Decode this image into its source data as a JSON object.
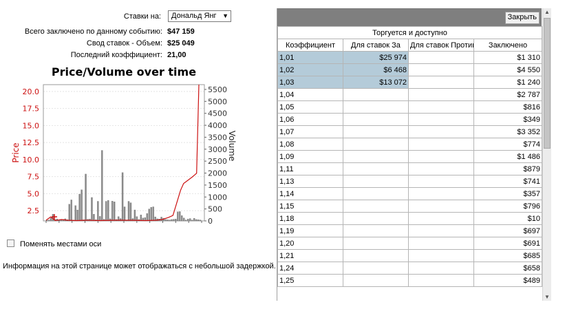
{
  "info": {
    "bet_on_label": "Ставки на:",
    "bet_on_value": "Дональд Янг",
    "total_label": "Всего заключено по данному событию:",
    "total_value": "$47 159",
    "summary_label": "Свод ставок - Объем:",
    "summary_value": "$25 049",
    "last_odds_label": "Последний коэффициент:",
    "last_odds_value": "21,00"
  },
  "checkbox_label": "Поменять местами оси",
  "delay_note": "Информация на этой странице может отображаться с небольшой задержкой.",
  "chart_data": {
    "type": "bar+line",
    "title": "Price/Volume over time",
    "ylabel_left": "Price",
    "ylabel_right": "Volume",
    "left_ticks": [
      "2.5",
      "5.0",
      "7.5",
      "10.0",
      "12.5",
      "15.0",
      "17.5",
      "20.0"
    ],
    "left_ylim": [
      1,
      21
    ],
    "right_ticks": [
      "0",
      "500",
      "1000",
      "1500",
      "2000",
      "2500",
      "3000",
      "3500",
      "4000",
      "4500",
      "5000",
      "5500"
    ],
    "right_ylim": [
      0,
      5700
    ],
    "volume_bars": [
      30,
      40,
      120,
      280,
      60,
      80,
      30,
      40,
      60,
      90,
      50,
      700,
      880,
      40,
      640,
      460,
      1120,
      1300,
      50,
      1960,
      70,
      80,
      980,
      280,
      50,
      820,
      190,
      2950,
      70,
      820,
      860,
      90,
      830,
      800,
      60,
      180,
      100,
      2020,
      590,
      40,
      820,
      760,
      100,
      460,
      180,
      60,
      250,
      120,
      140,
      310,
      500,
      570,
      590,
      170,
      90,
      80,
      160,
      110,
      60,
      50,
      40,
      60,
      70,
      80,
      380,
      390,
      220,
      120,
      40,
      80,
      100,
      40,
      110,
      60,
      50,
      40
    ],
    "price_line": [
      [
        0.0,
        1.1
      ],
      [
        0.03,
        1.6
      ],
      [
        0.06,
        1.05
      ],
      [
        0.1,
        1.2
      ],
      [
        0.14,
        1.1
      ],
      [
        0.2,
        1.05
      ],
      [
        0.26,
        1.1
      ],
      [
        0.35,
        1.05
      ],
      [
        0.45,
        1.1
      ],
      [
        0.55,
        1.1
      ],
      [
        0.65,
        1.05
      ],
      [
        0.72,
        1.1
      ],
      [
        0.76,
        1.2
      ],
      [
        0.8,
        1.5
      ],
      [
        0.83,
        1.8
      ],
      [
        0.86,
        4.0
      ],
      [
        0.88,
        5.5
      ],
      [
        0.9,
        6.5
      ],
      [
        0.93,
        7.0
      ],
      [
        0.96,
        7.5
      ],
      [
        0.985,
        8.0
      ],
      [
        1.0,
        21.0
      ]
    ]
  },
  "table": {
    "close_label": "Закрыть",
    "caption": "Торгуется и доступно",
    "headers": [
      "Коэффициент",
      "Для ставок За",
      "Для ставок Против",
      "Заключено"
    ],
    "rows": [
      {
        "odds": "1,01",
        "for": "$25 974",
        "against": "",
        "matched": "$1 310"
      },
      {
        "odds": "1,02",
        "for": "$6 468",
        "against": "",
        "matched": "$4 550"
      },
      {
        "odds": "1,03",
        "for": "$13 072",
        "against": "",
        "matched": "$1 240"
      },
      {
        "odds": "1,04",
        "for": "",
        "against": "",
        "matched": "$2 787"
      },
      {
        "odds": "1,05",
        "for": "",
        "against": "",
        "matched": "$816"
      },
      {
        "odds": "1,06",
        "for": "",
        "against": "",
        "matched": "$349"
      },
      {
        "odds": "1,07",
        "for": "",
        "against": "",
        "matched": "$3 352"
      },
      {
        "odds": "1,08",
        "for": "",
        "against": "",
        "matched": "$774"
      },
      {
        "odds": "1,09",
        "for": "",
        "against": "",
        "matched": "$1 486"
      },
      {
        "odds": "1,11",
        "for": "",
        "against": "",
        "matched": "$879"
      },
      {
        "odds": "1,13",
        "for": "",
        "against": "",
        "matched": "$741"
      },
      {
        "odds": "1,14",
        "for": "",
        "against": "",
        "matched": "$357"
      },
      {
        "odds": "1,15",
        "for": "",
        "against": "",
        "matched": "$796"
      },
      {
        "odds": "1,18",
        "for": "",
        "against": "",
        "matched": "$10"
      },
      {
        "odds": "1,19",
        "for": "",
        "against": "",
        "matched": "$697"
      },
      {
        "odds": "1,20",
        "for": "",
        "against": "",
        "matched": "$691"
      },
      {
        "odds": "1,21",
        "for": "",
        "against": "",
        "matched": "$685"
      },
      {
        "odds": "1,24",
        "for": "",
        "against": "",
        "matched": "$658"
      },
      {
        "odds": "1,25",
        "for": "",
        "against": "",
        "matched": "$489"
      }
    ]
  },
  "colors": {
    "price_line": "#cc1111",
    "volume_bar": "#8c8c8c",
    "highlight": "#b4cbd9",
    "header_bar": "#7f7f7f"
  }
}
